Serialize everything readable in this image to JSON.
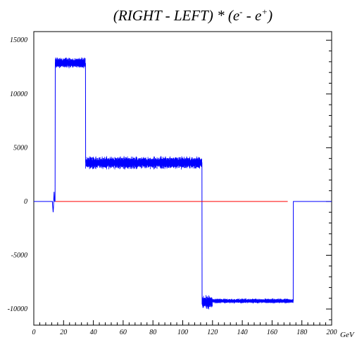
{
  "chart_data": {
    "type": "line",
    "title_parts": {
      "lead": "(RIGHT - LEFT) * (e",
      "sup1": "-",
      "mid": " - e",
      "sup2": "+",
      "close": ")"
    },
    "xlabel": "",
    "ylabel": "",
    "x_unit": "GeV",
    "xlim": [
      0,
      200
    ],
    "ylim": [
      -11500,
      15800
    ],
    "x_ticks": [
      "0",
      "20",
      "40",
      "60",
      "80",
      "100",
      "120",
      "140",
      "160",
      "180",
      "200"
    ],
    "y_ticks": [
      "15000",
      "10000",
      "5000",
      "0",
      "-5000",
      "-10000"
    ],
    "grid": false,
    "legend": "none",
    "series": [
      {
        "id": "blue",
        "color": "#0000ff",
        "points": [
          [
            0,
            0
          ],
          [
            12.5,
            0
          ],
          [
            12.6,
            -300
          ],
          [
            12.8,
            -700
          ],
          [
            13,
            -1000
          ],
          [
            13.2,
            -600
          ],
          [
            13.4,
            200
          ],
          [
            13.6,
            900
          ],
          [
            13.8,
            300
          ],
          [
            14,
            0
          ],
          [
            14.3,
            0
          ],
          [
            14.4,
            12900
          ],
          [
            20,
            12850
          ],
          [
            25,
            12950
          ],
          [
            30,
            12900
          ],
          [
            34.7,
            12850
          ],
          [
            34.8,
            3650
          ],
          [
            50,
            3550
          ],
          [
            70,
            3600
          ],
          [
            90,
            3550
          ],
          [
            112.9,
            3600
          ],
          [
            113,
            -9500
          ],
          [
            118,
            -9250
          ],
          [
            130,
            -9250
          ],
          [
            150,
            -9200
          ],
          [
            174.2,
            -9250
          ],
          [
            174.3,
            0
          ],
          [
            200,
            0
          ]
        ],
        "noise_bands": [
          {
            "x": [
              14.4,
              34.7
            ],
            "center": 12900,
            "amplitude": 550
          },
          {
            "x": [
              34.8,
              112.9
            ],
            "center": 3600,
            "amplitude": 650
          },
          {
            "x": [
              113.0,
              120.0
            ],
            "center": -9350,
            "amplitude": 700
          },
          {
            "x": [
              120.0,
              174.2
            ],
            "center": -9250,
            "amplitude": 250
          }
        ]
      },
      {
        "id": "red",
        "color": "#ff0000",
        "points": [
          [
            14.5,
            0
          ],
          [
            170.5,
            0
          ]
        ]
      }
    ]
  }
}
